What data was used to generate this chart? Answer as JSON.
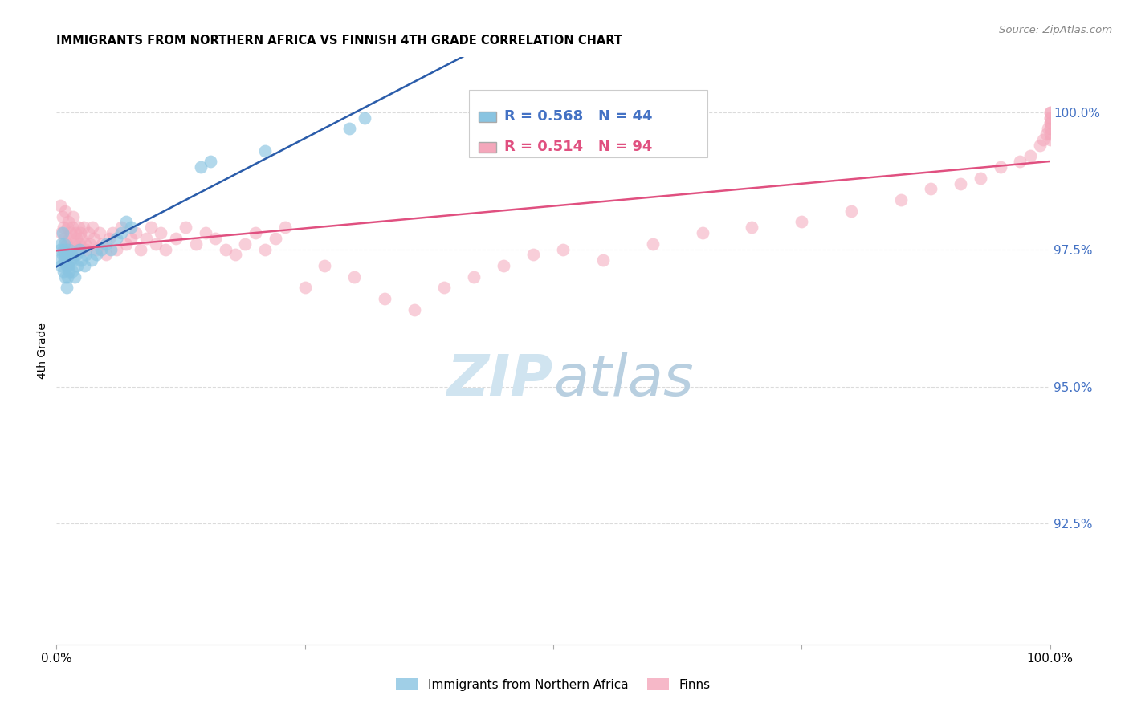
{
  "title": "IMMIGRANTS FROM NORTHERN AFRICA VS FINNISH 4TH GRADE CORRELATION CHART",
  "source": "Source: ZipAtlas.com",
  "ylabel": "4th Grade",
  "ytick_labels": [
    "92.5%",
    "95.0%",
    "97.5%",
    "100.0%"
  ],
  "ytick_values": [
    92.5,
    95.0,
    97.5,
    100.0
  ],
  "xlim": [
    0.0,
    100.0
  ],
  "ylim": [
    90.3,
    101.0
  ],
  "blue_R": 0.568,
  "blue_N": 44,
  "pink_R": 0.514,
  "pink_N": 94,
  "blue_scatter_color": "#89c4e1",
  "pink_scatter_color": "#f4a7bb",
  "blue_line_color": "#2a5caa",
  "pink_line_color": "#e05080",
  "legend_color": "#4472c4",
  "watermark_color": "#d0e4f0",
  "blue_points_x": [
    0.3,
    0.4,
    0.5,
    0.5,
    0.6,
    0.6,
    0.7,
    0.7,
    0.8,
    0.8,
    0.9,
    0.9,
    1.0,
    1.0,
    1.1,
    1.1,
    1.2,
    1.3,
    1.3,
    1.4,
    1.5,
    1.6,
    1.7,
    1.8,
    2.0,
    2.1,
    2.3,
    2.5,
    2.8,
    3.0,
    3.5,
    4.0,
    4.5,
    5.0,
    5.5,
    6.0,
    6.5,
    7.0,
    7.5,
    14.5,
    15.5,
    21.0,
    29.5,
    31.0
  ],
  "blue_points_y": [
    97.3,
    97.5,
    97.2,
    97.6,
    97.4,
    97.8,
    97.1,
    97.5,
    97.3,
    97.6,
    97.0,
    97.4,
    96.8,
    97.2,
    97.0,
    97.4,
    97.2,
    97.5,
    97.1,
    97.3,
    97.4,
    97.1,
    97.3,
    97.0,
    97.4,
    97.2,
    97.5,
    97.3,
    97.2,
    97.4,
    97.3,
    97.4,
    97.5,
    97.6,
    97.5,
    97.7,
    97.8,
    98.0,
    97.9,
    99.0,
    99.1,
    99.3,
    99.7,
    99.9
  ],
  "pink_points_x": [
    0.4,
    0.5,
    0.6,
    0.7,
    0.8,
    0.9,
    1.0,
    1.1,
    1.2,
    1.3,
    1.4,
    1.5,
    1.6,
    1.7,
    1.8,
    1.9,
    2.0,
    2.1,
    2.2,
    2.3,
    2.4,
    2.5,
    2.7,
    2.9,
    3.0,
    3.2,
    3.4,
    3.6,
    3.8,
    4.0,
    4.3,
    4.6,
    5.0,
    5.3,
    5.6,
    6.0,
    6.5,
    7.0,
    7.5,
    8.0,
    8.5,
    9.0,
    9.5,
    10.0,
    10.5,
    11.0,
    12.0,
    13.0,
    14.0,
    15.0,
    16.0,
    17.0,
    18.0,
    19.0,
    20.0,
    21.0,
    22.0,
    23.0,
    25.0,
    27.0,
    30.0,
    33.0,
    36.0,
    39.0,
    42.0,
    45.0,
    48.0,
    51.0,
    55.0,
    60.0,
    65.0,
    70.0,
    75.0,
    80.0,
    85.0,
    88.0,
    91.0,
    93.0,
    95.0,
    97.0,
    98.0,
    99.0,
    99.3,
    99.6,
    99.8,
    100.0,
    100.0,
    100.0,
    100.0,
    100.0,
    100.0,
    100.0,
    100.0,
    100.0
  ],
  "pink_points_y": [
    98.3,
    97.8,
    98.1,
    97.9,
    97.7,
    98.2,
    97.6,
    97.9,
    98.0,
    97.7,
    97.8,
    97.5,
    97.9,
    98.1,
    97.6,
    97.8,
    97.7,
    97.5,
    97.9,
    97.6,
    97.8,
    97.7,
    97.9,
    97.6,
    97.5,
    97.8,
    97.6,
    97.9,
    97.7,
    97.5,
    97.8,
    97.6,
    97.4,
    97.7,
    97.8,
    97.5,
    97.9,
    97.6,
    97.7,
    97.8,
    97.5,
    97.7,
    97.9,
    97.6,
    97.8,
    97.5,
    97.7,
    97.9,
    97.6,
    97.8,
    97.7,
    97.5,
    97.4,
    97.6,
    97.8,
    97.5,
    97.7,
    97.9,
    96.8,
    97.2,
    97.0,
    96.6,
    96.4,
    96.8,
    97.0,
    97.2,
    97.4,
    97.5,
    97.3,
    97.6,
    97.8,
    97.9,
    98.0,
    98.2,
    98.4,
    98.6,
    98.7,
    98.8,
    99.0,
    99.1,
    99.2,
    99.4,
    99.5,
    99.6,
    99.7,
    99.8,
    99.9,
    100.0,
    99.5,
    99.7,
    99.8,
    99.9,
    100.0,
    99.6
  ]
}
